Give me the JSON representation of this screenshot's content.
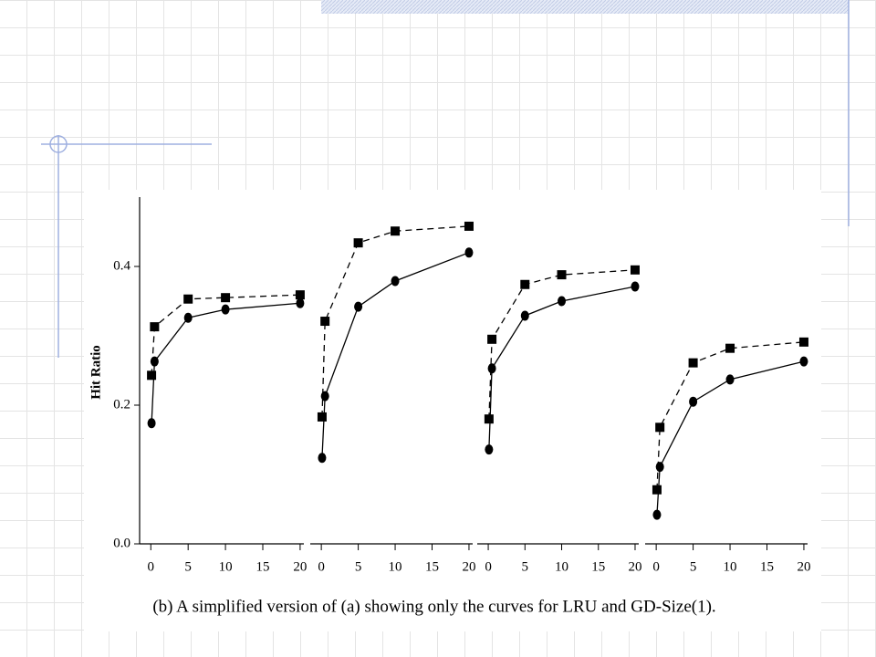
{
  "chart_data": [
    {
      "type": "line",
      "ylabel": "Hit Ratio",
      "ylim": [
        0,
        0.5
      ],
      "yticks": [
        {
          "value": 0,
          "label": "0.0"
        },
        {
          "value": 0.2,
          "label": "0.2"
        },
        {
          "value": 0.4,
          "label": "0.4"
        }
      ],
      "xlim": [
        -1.5,
        20.5
      ],
      "xticks": [
        0,
        5,
        10,
        15,
        20
      ],
      "series": [
        {
          "color": "#000000",
          "marker": "square",
          "line_style": "dashed",
          "x": [
            0.1,
            0.5,
            5,
            10,
            20
          ],
          "values": [
            0.243,
            0.313,
            0.353,
            0.355,
            0.359
          ]
        },
        {
          "color": "#000000",
          "marker": "circle",
          "line_style": "solid",
          "x": [
            0.1,
            0.5,
            5,
            10,
            20
          ],
          "values": [
            0.174,
            0.263,
            0.326,
            0.338,
            0.347
          ]
        }
      ]
    },
    {
      "type": "line",
      "ylim": [
        0,
        0.5
      ],
      "xlim": [
        -1.5,
        20.5
      ],
      "xticks": [
        0,
        5,
        10,
        15,
        20
      ],
      "series": [
        {
          "color": "#000000",
          "marker": "square",
          "line_style": "dashed",
          "x": [
            0.1,
            0.5,
            5,
            10,
            20
          ],
          "values": [
            0.183,
            0.321,
            0.434,
            0.451,
            0.458
          ]
        },
        {
          "color": "#000000",
          "marker": "circle",
          "line_style": "solid",
          "x": [
            0.1,
            0.5,
            5,
            10,
            20
          ],
          "values": [
            0.124,
            0.213,
            0.342,
            0.379,
            0.42
          ]
        }
      ]
    },
    {
      "type": "line",
      "ylim": [
        0,
        0.5
      ],
      "xlim": [
        -1.5,
        20.5
      ],
      "xticks": [
        0,
        5,
        10,
        15,
        20
      ],
      "series": [
        {
          "color": "#000000",
          "marker": "square",
          "line_style": "dashed",
          "x": [
            0.1,
            0.5,
            5,
            10,
            20
          ],
          "values": [
            0.18,
            0.295,
            0.374,
            0.388,
            0.395
          ]
        },
        {
          "color": "#000000",
          "marker": "circle",
          "line_style": "solid",
          "x": [
            0.1,
            0.5,
            5,
            10,
            20
          ],
          "values": [
            0.136,
            0.253,
            0.329,
            0.35,
            0.371
          ]
        }
      ]
    },
    {
      "type": "line",
      "ylim": [
        0,
        0.5
      ],
      "xlim": [
        -1.5,
        20.5
      ],
      "xticks": [
        0,
        5,
        10,
        15,
        20
      ],
      "series": [
        {
          "color": "#000000",
          "marker": "square",
          "line_style": "dashed",
          "x": [
            0.1,
            0.5,
            5,
            10,
            20
          ],
          "values": [
            0.078,
            0.168,
            0.261,
            0.282,
            0.291
          ]
        },
        {
          "color": "#000000",
          "marker": "circle",
          "line_style": "solid",
          "x": [
            0.1,
            0.5,
            5,
            10,
            20
          ],
          "values": [
            0.042,
            0.111,
            0.205,
            0.237,
            0.263
          ]
        }
      ]
    }
  ],
  "caption": "(b) A simplified version of (a) showing only the curves for LRU and GD-Size(1)."
}
